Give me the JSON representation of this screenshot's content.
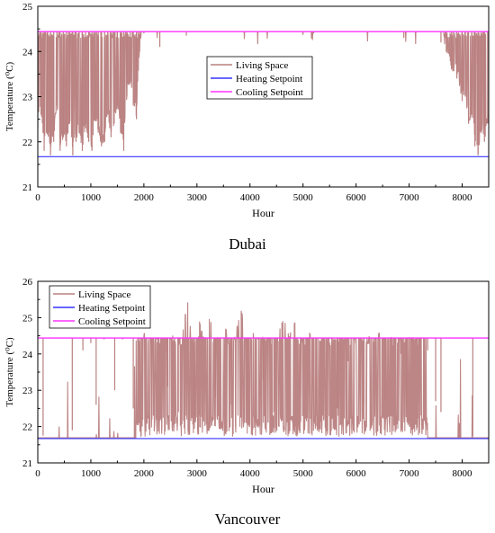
{
  "colors": {
    "living_space": "#b9807f",
    "heating": "#3333ff",
    "cooling": "#ff33ff",
    "axis": "#000000",
    "background": "#ffffff"
  },
  "chart_data": [
    {
      "type": "line",
      "caption": "Dubai",
      "xlabel": "Hour",
      "ylabel": "Temperature (⁰C)",
      "xlim": [
        0,
        8500
      ],
      "ylim": [
        21,
        25
      ],
      "xticks": [
        0,
        1000,
        2000,
        3000,
        4000,
        5000,
        6000,
        7000,
        8000
      ],
      "yticks": [
        21,
        22,
        23,
        24,
        25
      ],
      "grid": false,
      "legend_position": "center",
      "series": [
        {
          "name": "Living Space",
          "color": "#b9807f",
          "x": [
            0,
            60,
            120,
            180,
            240,
            300,
            360,
            420,
            480,
            540,
            600,
            660,
            720,
            780,
            840,
            900,
            960,
            1020,
            1080,
            1140,
            1200,
            1260,
            1320,
            1380,
            1440,
            1500,
            1560,
            1620,
            1680,
            1740,
            1800,
            1860,
            1920,
            2000,
            2300,
            2800,
            5200,
            6900,
            7600,
            7700,
            7800,
            7900,
            8000,
            8060,
            8120,
            8180,
            8240,
            8300,
            8360,
            8420,
            8480
          ],
          "y": [
            22.3,
            22.6,
            21.8,
            22.2,
            21.7,
            22.0,
            22.8,
            21.8,
            22.1,
            21.9,
            22.4,
            21.7,
            22.0,
            22.2,
            21.8,
            22.3,
            22.0,
            21.8,
            22.5,
            22.2,
            21.9,
            22.0,
            22.6,
            22.1,
            22.4,
            22.8,
            22.2,
            21.8,
            23.0,
            23.3,
            22.8,
            22.5,
            24.0,
            24.4,
            24.1,
            24.35,
            24.4,
            24.3,
            24.2,
            24.0,
            23.6,
            23.4,
            22.9,
            23.0,
            22.4,
            22.6,
            21.9,
            21.7,
            22.2,
            22.0,
            22.4
          ]
        },
        {
          "name": "Heating Setpoint",
          "color": "#3333ff",
          "value": 21.67
        },
        {
          "name": "Cooling Setpoint",
          "color": "#ff33ff",
          "value": 24.44
        }
      ]
    },
    {
      "type": "line",
      "caption": "Vancouver",
      "xlabel": "Hour",
      "ylabel": "Temperature (⁰C)",
      "xlim": [
        0,
        8500
      ],
      "ylim": [
        21,
        26
      ],
      "xticks": [
        0,
        1000,
        2000,
        3000,
        4000,
        5000,
        6000,
        7000,
        8000
      ],
      "yticks": [
        21,
        22,
        23,
        24,
        25,
        26
      ],
      "grid": false,
      "legend_position": "top-left",
      "series": [
        {
          "name": "Living Space",
          "color": "#b9807f",
          "x": [
            100,
            650,
            850,
            1000,
            1100,
            1250,
            1450,
            1600,
            1800,
            1950,
            2050,
            2150,
            2250,
            2350,
            2450,
            2550,
            2650,
            2750,
            2850,
            2950,
            3050,
            3150,
            3250,
            3350,
            3450,
            3550,
            3650,
            3750,
            3850,
            3950,
            4050,
            4150,
            4250,
            4350,
            4450,
            4550,
            4650,
            4750,
            4850,
            4950,
            5050,
            5150,
            5250,
            5350,
            5450,
            5550,
            5650,
            5750,
            5850,
            5950,
            6050,
            6150,
            6250,
            6350,
            6450,
            6550,
            6650,
            6750,
            6850,
            6950,
            7050,
            7200,
            7350,
            7500,
            7600,
            8200
          ],
          "y": [
            21.75,
            21.9,
            24.1,
            24.3,
            22.6,
            24.4,
            23.0,
            24.4,
            22.5,
            24.4,
            24.7,
            22.2,
            24.4,
            24.6,
            23.1,
            24.7,
            22.4,
            24.9,
            25.6,
            22.3,
            25.0,
            24.4,
            25.3,
            22.8,
            24.5,
            24.9,
            22.6,
            24.8,
            25.3,
            22.7,
            24.6,
            24.4,
            23.3,
            24.5,
            22.4,
            24.8,
            25.1,
            24.6,
            24.9,
            22.9,
            24.4,
            24.7,
            22.6,
            24.6,
            24.5,
            24.4,
            22.5,
            24.6,
            23.8,
            24.4,
            24.7,
            22.6,
            24.6,
            24.4,
            24.8,
            22.7,
            24.5,
            24.3,
            24.0,
            22.5,
            24.3,
            24.2,
            24.1,
            22.7,
            22.4,
            21.75
          ]
        },
        {
          "name": "Heating Setpoint",
          "color": "#3333ff",
          "value": 21.67
        },
        {
          "name": "Cooling Setpoint",
          "color": "#ff33ff",
          "value": 24.44
        }
      ]
    }
  ]
}
